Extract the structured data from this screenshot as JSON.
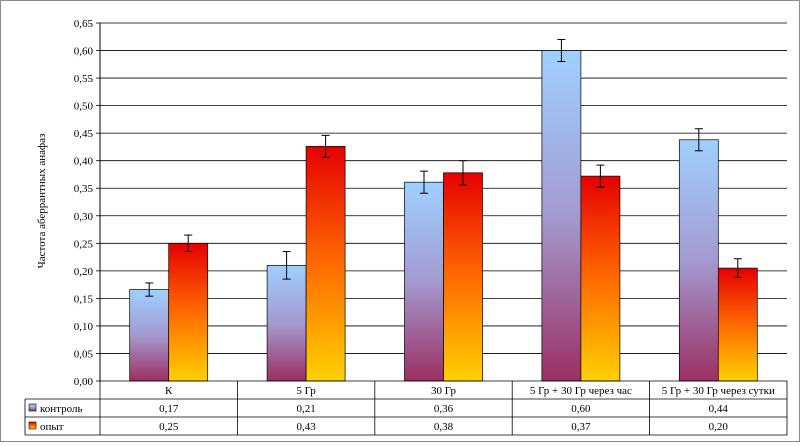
{
  "chart_data": {
    "type": "bar",
    "title": "",
    "xlabel": "",
    "ylabel": "Частота аберрантных анафаз",
    "ylim": [
      0,
      0.65
    ],
    "ytick_step": 0.05,
    "grid": true,
    "legend": "data-table",
    "categories": [
      "К",
      "5 Гр",
      "30 Гр",
      "5 Гр + 30 Гр через час",
      "5 Гр + 30 Гр через сутки"
    ],
    "series": [
      {
        "name": "контроль",
        "values": [
          0.166,
          0.21,
          0.361,
          0.6,
          0.438
        ],
        "errors": [
          0.012,
          0.025,
          0.02,
          0.02,
          0.02
        ],
        "table_values": [
          "0,17",
          "0,21",
          "0,36",
          "0,60",
          "0,44"
        ],
        "gradient": [
          "#9fd0ff",
          "#a39ad0",
          "#9b2f63"
        ]
      },
      {
        "name": "опыт",
        "values": [
          0.25,
          0.426,
          0.378,
          0.372,
          0.205
        ],
        "errors": [
          0.015,
          0.02,
          0.022,
          0.02,
          0.017
        ],
        "table_values": [
          "0,25",
          "0,43",
          "0,38",
          "0,37",
          "0,20"
        ],
        "gradient": [
          "#e60000",
          "#ff6a00",
          "#ffd000"
        ]
      }
    ]
  }
}
